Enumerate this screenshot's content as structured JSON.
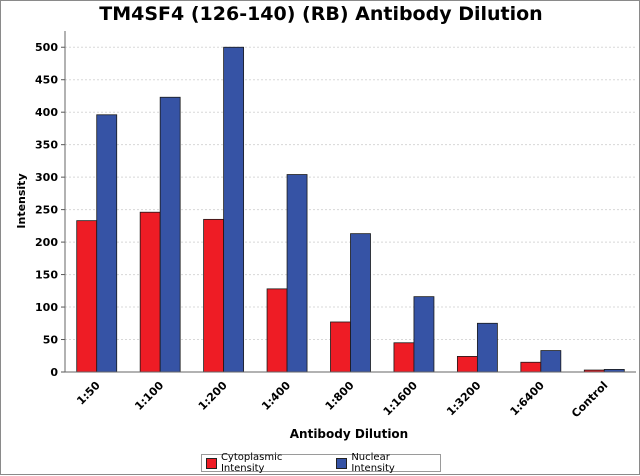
{
  "chart_data": {
    "type": "bar",
    "title": "TM4SF4 (126-140) (RB) Antibody Dilution",
    "xlabel": "Antibody Dilution",
    "ylabel": "Intensity",
    "categories": [
      "1:50",
      "1:100",
      "1:200",
      "1:400",
      "1:800",
      "1:1600",
      "1:3200",
      "1:6400",
      "Control"
    ],
    "series": [
      {
        "name": "Cytoplasmic Intensity",
        "color": "#ee1c25",
        "values": [
          233,
          246,
          235,
          128,
          77,
          45,
          24,
          15,
          3
        ]
      },
      {
        "name": "Nuclear Intensity",
        "color": "#3653a5",
        "values": [
          396,
          423,
          500,
          304,
          213,
          116,
          75,
          33,
          4
        ]
      }
    ],
    "ylim": [
      0,
      525
    ],
    "yticks": [
      0,
      50,
      100,
      150,
      200,
      250,
      300,
      350,
      400,
      450,
      500
    ],
    "grid": true,
    "legend_position": "bottom"
  }
}
